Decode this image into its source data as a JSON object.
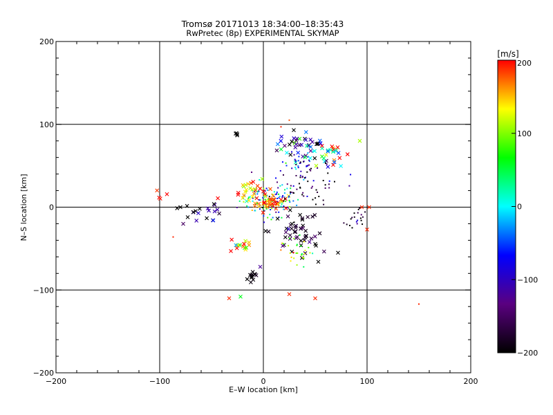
{
  "title_line1": "Tromsø 20171013 18:34:00–18:35:43",
  "title_line2": "RwPretec (8p) EXPERIMENTAL SKYMAP",
  "chart_data": {
    "type": "scatter",
    "xlabel": "E–W location [km]",
    "ylabel": "N–S location [km]",
    "xlim": [
      -200,
      200
    ],
    "ylim": [
      -200,
      200
    ],
    "x_ticks": [
      -200,
      -100,
      0,
      100,
      200
    ],
    "y_ticks": [
      -200,
      -100,
      0,
      100,
      200
    ],
    "x_tick_labels": [
      "−200",
      "−100",
      "0",
      "100",
      "200"
    ],
    "y_tick_labels": [
      "−200",
      "−100",
      "0",
      "100",
      "200"
    ],
    "grid": true,
    "colorbar": {
      "label": "[m/s]",
      "range": [
        -200,
        200
      ],
      "ticks": [
        200,
        100,
        0,
        -100,
        -200
      ],
      "tick_labels": [
        "200",
        "100",
        "0",
        "−100",
        "−200"
      ],
      "colors": [
        "#000000",
        "#5a0080",
        "#0000ff",
        "#00ffff",
        "#00ff00",
        "#ffff00",
        "#ff0000"
      ]
    },
    "point_groups": [
      {
        "center": [
          5,
          8
        ],
        "spread": [
          14,
          10
        ],
        "count": 120,
        "marker": "dot",
        "color_mean": 0,
        "color_spread": 70
      },
      {
        "center": [
          8,
          5
        ],
        "spread": [
          8,
          5
        ],
        "count": 40,
        "marker": "cross",
        "color_mean": 175,
        "color_spread": 30
      },
      {
        "center": [
          -10,
          20
        ],
        "spread": [
          10,
          6
        ],
        "count": 25,
        "marker": "cross",
        "color_mean": 160,
        "color_spread": 50
      },
      {
        "center": [
          35,
          75
        ],
        "spread": [
          10,
          8
        ],
        "count": 40,
        "marker": "cross",
        "color_mean": -120,
        "color_spread": 90
      },
      {
        "center": [
          35,
          55
        ],
        "spread": [
          8,
          8
        ],
        "count": 35,
        "marker": "dot",
        "color_mean": -90,
        "color_spread": 80
      },
      {
        "center": [
          60,
          62
        ],
        "spread": [
          10,
          8
        ],
        "count": 30,
        "marker": "cross",
        "color_mean": 60,
        "color_spread": 140
      },
      {
        "center": [
          40,
          30
        ],
        "spread": [
          18,
          12
        ],
        "count": 60,
        "marker": "dot",
        "color_mean": -160,
        "color_spread": 60
      },
      {
        "center": [
          30,
          -30
        ],
        "spread": [
          12,
          14
        ],
        "count": 50,
        "marker": "cross",
        "color_mean": -190,
        "color_spread": 30
      },
      {
        "center": [
          35,
          -55
        ],
        "spread": [
          10,
          10
        ],
        "count": 30,
        "marker": "dot",
        "color_mean": 100,
        "color_spread": 60
      },
      {
        "center": [
          -20,
          -45
        ],
        "spread": [
          8,
          5
        ],
        "count": 15,
        "marker": "cross",
        "color_mean": 150,
        "color_spread": 60
      },
      {
        "center": [
          -12,
          -82
        ],
        "spread": [
          3,
          3
        ],
        "count": 12,
        "marker": "cross",
        "color_mean": -195,
        "color_spread": 10
      },
      {
        "center": [
          90,
          -12
        ],
        "spread": [
          5,
          6
        ],
        "count": 20,
        "marker": "dot",
        "color_mean": -180,
        "color_spread": 40
      },
      {
        "center": [
          -60,
          -5
        ],
        "spread": [
          12,
          8
        ],
        "count": 20,
        "marker": "cross",
        "color_mean": -170,
        "color_spread": 60
      },
      {
        "center": [
          -25,
          88
        ],
        "spread": [
          3,
          2
        ],
        "count": 4,
        "marker": "cross",
        "color_mean": -200,
        "color_spread": 0
      },
      {
        "center": [
          -100,
          15
        ],
        "spread": [
          3,
          5
        ],
        "count": 4,
        "marker": "cross",
        "color_mean": 195,
        "color_spread": 10
      }
    ],
    "points": [
      {
        "x": 150,
        "y": -117,
        "v": 190,
        "marker": "dot"
      },
      {
        "x": -33,
        "y": -110,
        "v": 190,
        "marker": "cross"
      },
      {
        "x": -22,
        "y": -108,
        "v": 60,
        "marker": "cross"
      },
      {
        "x": 25,
        "y": -105,
        "v": 190,
        "marker": "cross"
      },
      {
        "x": 50,
        "y": -110,
        "v": 190,
        "marker": "cross"
      },
      {
        "x": 100,
        "y": -27,
        "v": 190,
        "marker": "cross"
      },
      {
        "x": 93,
        "y": 80,
        "v": 110,
        "marker": "cross"
      },
      {
        "x": 25,
        "y": 105,
        "v": 180,
        "marker": "dot"
      },
      {
        "x": -3,
        "y": -72,
        "v": -120,
        "marker": "cross"
      },
      {
        "x": 72,
        "y": -55,
        "v": -200,
        "marker": "cross"
      },
      {
        "x": 53,
        "y": -66,
        "v": -200,
        "marker": "cross"
      },
      {
        "x": 95,
        "y": 0,
        "v": 190,
        "marker": "cross"
      },
      {
        "x": 102,
        "y": 0,
        "v": 190,
        "marker": "cross"
      },
      {
        "x": -87,
        "y": -36,
        "v": 190,
        "marker": "dot"
      },
      {
        "x": 17,
        "y": 97,
        "v": 190,
        "marker": "dot"
      },
      {
        "x": -80,
        "y": 0,
        "v": -200,
        "marker": "cross"
      }
    ]
  }
}
